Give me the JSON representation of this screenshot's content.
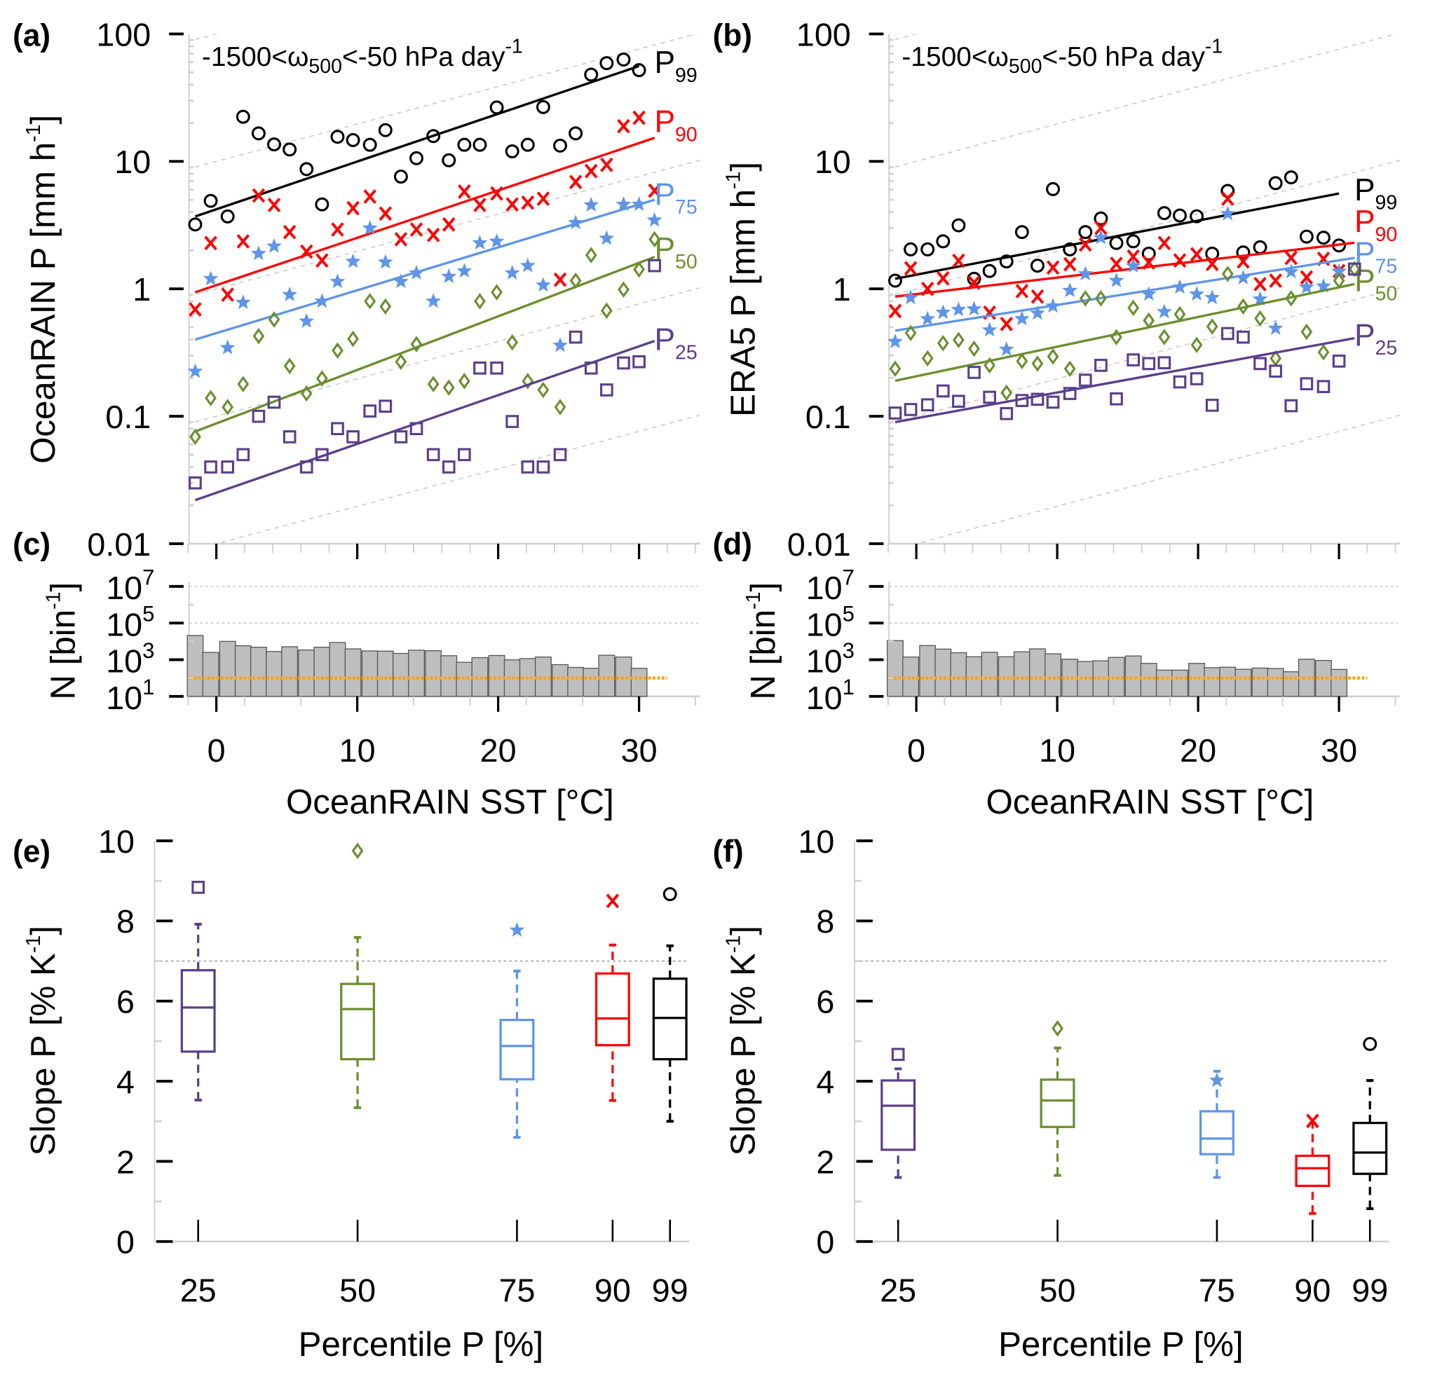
{
  "chart_data": [
    {
      "panel": "(a)",
      "type": "scatter",
      "annotation": {
        "pre": "-1500<ω",
        "sub": "500",
        "mid": "<-50 hPa day",
        "sup": "-1"
      },
      "ylabel": {
        "text": "OceanRAIN P [mm h",
        "sup": "-1",
        "end": "]"
      },
      "yscale": "log",
      "ylim": [
        0.01,
        100
      ],
      "yticks": [
        100,
        10,
        1,
        0.1,
        0.01
      ],
      "ytick_labels": [
        "100",
        "10",
        "1",
        "0.1",
        "0.01"
      ],
      "xlim": [
        -2,
        36
      ],
      "reference_lines": "7 % K-1 (dashed grey)",
      "x": [
        -1.5,
        -0.4,
        0.8,
        1.9,
        3.0,
        4.1,
        5.2,
        6.4,
        7.5,
        8.6,
        9.7,
        10.9,
        12.0,
        13.1,
        14.2,
        15.4,
        16.5,
        17.6,
        18.7,
        19.9,
        21.0,
        22.1,
        23.2,
        24.4,
        25.5,
        26.6,
        27.7,
        28.9,
        30.0,
        31.1
      ],
      "series": [
        {
          "name": {
            "main": "P",
            "sub": "99"
          },
          "marker": "circle",
          "color": "#000000",
          "values": [
            3.2,
            4.9,
            3.7,
            22.4,
            16.6,
            13.6,
            12.4,
            8.7,
            4.6,
            15.6,
            14.7,
            13.5,
            17.6,
            7.6,
            10.6,
            15.8,
            10.2,
            13.5,
            13.5,
            26.5,
            12.0,
            13.5,
            26.7,
            13.3,
            16.6,
            48,
            59,
            63,
            52,
            null
          ],
          "fit": {
            "x": [
              -1.5,
              30.0
            ],
            "y": [
              3.7,
              56
            ]
          }
        },
        {
          "name": {
            "main": "P",
            "sub": "90"
          },
          "marker": "cross",
          "color": "#ff0000",
          "values": [
            0.69,
            2.29,
            0.9,
            2.36,
            5.4,
            4.55,
            2.79,
            1.96,
            1.67,
            2.92,
            4.3,
            5.3,
            3.9,
            2.45,
            2.92,
            2.65,
            3.2,
            5.8,
            4.55,
            5.6,
            4.6,
            4.75,
            5.1,
            1.18,
            6.9,
            8.4,
            9.4,
            18.9,
            22.0,
            5.9
          ],
          "fit": {
            "x": [
              -1.5,
              31.1
            ],
            "y": [
              0.94,
              15.3
            ]
          }
        },
        {
          "name": {
            "main": "P",
            "sub": "75"
          },
          "marker": "star",
          "color": "#5e95e8",
          "values": [
            0.225,
            1.2,
            0.345,
            0.78,
            1.89,
            2.16,
            0.9,
            0.557,
            0.8,
            1.14,
            1.64,
            3.0,
            1.62,
            1.14,
            1.33,
            0.8,
            1.25,
            1.38,
            2.29,
            2.36,
            1.33,
            1.52,
            1.07,
            0.36,
            3.3,
            4.55,
            2.49,
            4.6,
            4.6,
            3.46
          ],
          "fit": {
            "x": [
              -1.5,
              31.1
            ],
            "y": [
              0.4,
              5.0
            ]
          }
        },
        {
          "name": {
            "main": "P",
            "sub": "50"
          },
          "marker": "diamond",
          "color": "#6b8e2f",
          "values": [
            0.069,
            0.139,
            0.118,
            0.179,
            0.426,
            0.575,
            0.248,
            0.151,
            0.198,
            0.328,
            0.405,
            0.8,
            0.727,
            0.268,
            0.368,
            0.179,
            0.168,
            0.189,
            0.8,
            0.94,
            0.38,
            0.189,
            0.161,
            0.118,
            1.16,
            1.84,
            0.674,
            0.987,
            1.42,
            2.45
          ],
          "fit": {
            "x": [
              -1.5,
              31.1
            ],
            "y": [
              0.076,
              1.78
            ]
          }
        },
        {
          "name": {
            "main": "P",
            "sub": "25"
          },
          "marker": "square",
          "color": "#5b3f8c",
          "values": [
            0.03,
            0.04,
            0.04,
            0.05,
            0.1,
            0.129,
            0.069,
            0.04,
            0.05,
            0.08,
            0.069,
            0.11,
            0.12,
            0.069,
            0.08,
            0.05,
            0.04,
            0.05,
            0.239,
            0.239,
            0.091,
            0.04,
            0.04,
            0.05,
            0.418,
            0.239,
            0.161,
            0.262,
            0.268,
            1.52
          ],
          "fit": {
            "x": [
              -1.5,
              31.1
            ],
            "y": [
              0.022,
              0.39
            ]
          }
        }
      ]
    },
    {
      "panel": "(b)",
      "type": "scatter",
      "annotation": {
        "pre": "-1500<ω",
        "sub": "500",
        "mid": "<-50 hPa day",
        "sup": "-1"
      },
      "ylabel": {
        "text": "ERA5 P [mm h",
        "sup": "-1",
        "end": "]"
      },
      "yscale": "log",
      "ylim": [
        0.01,
        100
      ],
      "yticks": [
        100,
        10,
        1,
        0.1,
        0.01
      ],
      "ytick_labels": [
        "100",
        "10",
        "1",
        "0.1",
        "0.01"
      ],
      "xlim": [
        -2,
        36
      ],
      "reference_lines": "7 % K-1 (dashed grey)",
      "x": [
        -1.5,
        -0.4,
        0.8,
        1.9,
        3.0,
        4.1,
        5.2,
        6.4,
        7.5,
        8.6,
        9.7,
        10.9,
        12.0,
        13.1,
        14.2,
        15.4,
        16.5,
        17.6,
        18.7,
        19.9,
        21.0,
        22.1,
        23.2,
        24.4,
        25.5,
        26.6,
        27.7,
        28.9,
        30.0,
        31.1
      ],
      "series": [
        {
          "name": {
            "main": "P",
            "sub": "99"
          },
          "marker": "circle",
          "color": "#000000",
          "values": [
            1.16,
            2.04,
            2.04,
            2.36,
            3.15,
            1.2,
            1.38,
            1.64,
            2.79,
            1.52,
            6.06,
            2.04,
            2.79,
            3.57,
            2.29,
            2.36,
            1.89,
            3.93,
            3.76,
            3.71,
            1.89,
            5.87,
            1.93,
            2.12,
            6.75,
            7.5,
            2.57,
            2.52,
            2.19,
            null
          ],
          "fit": {
            "x": [
              -1.5,
              30.0
            ],
            "y": [
              1.2,
              5.6
            ]
          }
        },
        {
          "name": {
            "main": "P",
            "sub": "90"
          },
          "marker": "cross",
          "color": "#ff0000",
          "values": [
            0.67,
            1.45,
            1.0,
            1.21,
            1.66,
            1.12,
            0.65,
            0.53,
            0.96,
            0.87,
            1.47,
            1.56,
            2.23,
            3.01,
            1.57,
            1.79,
            1.61,
            2.29,
            1.67,
            1.87,
            1.57,
            5.1,
            1.64,
            1.09,
            1.16,
            1.75,
            1.23,
            1.72,
            1.38,
            null
          ],
          "fit": {
            "x": [
              -1.5,
              31.1
            ],
            "y": [
              0.87,
              2.3
            ]
          }
        },
        {
          "name": {
            "main": "P",
            "sub": "75"
          },
          "marker": "star",
          "color": "#5e95e8",
          "values": [
            0.385,
            0.853,
            0.582,
            0.653,
            0.687,
            0.695,
            0.475,
            0.335,
            0.582,
            0.644,
            0.732,
            0.97,
            1.31,
            2.52,
            1.16,
            1.51,
            0.909,
            0.661,
            1.03,
            0.909,
            0.853,
            3.88,
            1.22,
            0.831,
            0.49,
            1.36,
            1.03,
            1.05,
            1.37,
            null
          ],
          "fit": {
            "x": [
              -1.5,
              31.1
            ],
            "y": [
              0.47,
              1.75
            ]
          }
        },
        {
          "name": {
            "main": "P",
            "sub": "50"
          },
          "marker": "diamond",
          "color": "#6b8e2f",
          "values": [
            0.236,
            0.45,
            0.285,
            0.375,
            0.397,
            0.339,
            0.251,
            0.153,
            0.271,
            0.259,
            0.294,
            0.236,
            0.842,
            0.842,
            0.418,
            0.709,
            0.564,
            0.418,
            0.632,
            0.363,
            0.506,
            1.31,
            0.727,
            0.586,
            0.285,
            0.842,
            0.46,
            0.318,
            1.16,
            1.43
          ],
          "fit": {
            "x": [
              -1.5,
              31.1
            ],
            "y": [
              0.19,
              1.09
            ]
          }
        },
        {
          "name": {
            "main": "P",
            "sub": "25"
          },
          "marker": "square",
          "color": "#5b3f8c",
          "values": [
            0.106,
            0.113,
            0.123,
            0.158,
            0.131,
            0.221,
            0.141,
            0.105,
            0.133,
            0.136,
            0.129,
            0.151,
            0.192,
            0.251,
            0.137,
            0.277,
            0.259,
            0.263,
            0.186,
            0.197,
            0.122,
            0.446,
            0.418,
            0.259,
            0.226,
            0.121,
            0.18,
            0.171,
            0.271,
            1.43
          ],
          "fit": {
            "x": [
              -1.5,
              31.1
            ],
            "y": [
              0.09,
              0.41
            ]
          }
        }
      ]
    },
    {
      "panel": "(c)",
      "type": "bar",
      "yscale": "log",
      "ylabel": {
        "text": "N [bin",
        "sup": "-1",
        "end": "]"
      },
      "xlabel": "OceanRAIN SST [°C]",
      "xticks": [
        0,
        10,
        20,
        30
      ],
      "xtick_labels": [
        "0",
        "10",
        "20",
        "30"
      ],
      "yticks": [
        10,
        1000,
        100000,
        10000000
      ],
      "ytick_labels": [
        {
          "base": "10",
          "exp": "1"
        },
        {
          "base": "10",
          "exp": "3"
        },
        {
          "base": "10",
          "exp": "5"
        },
        {
          "base": "10",
          "exp": "7"
        }
      ],
      "ylim": [
        10,
        10000000
      ],
      "x": [
        -1.5,
        -0.4,
        0.8,
        1.9,
        3.0,
        4.1,
        5.2,
        6.4,
        7.5,
        8.6,
        9.7,
        10.9,
        12.0,
        13.1,
        14.2,
        15.4,
        16.5,
        17.6,
        18.7,
        19.9,
        21.0,
        22.1,
        23.2,
        24.4,
        25.5,
        26.6,
        27.7,
        28.9,
        30.0
      ],
      "values": [
        21000,
        2500,
        10000,
        5800,
        4800,
        2800,
        5100,
        3400,
        4800,
        8700,
        3900,
        3000,
        2950,
        2200,
        3300,
        3100,
        1650,
        720,
        1300,
        1700,
        980,
        1150,
        1400,
        540,
        380,
        340,
        1750,
        1400,
        340
      ],
      "bar_color": "#bebebe",
      "threshold": {
        "value": 100,
        "color": "#ffa500"
      }
    },
    {
      "panel": "(d)",
      "type": "bar",
      "yscale": "log",
      "ylabel": {
        "text": "N [bin",
        "sup": "-1",
        "end": "]"
      },
      "xlabel": "OceanRAIN SST [°C]",
      "xticks": [
        0,
        10,
        20,
        30
      ],
      "xtick_labels": [
        "0",
        "10",
        "20",
        "30"
      ],
      "yticks": [
        10,
        1000,
        100000,
        10000000
      ],
      "ytick_labels": [
        {
          "base": "10",
          "exp": "1"
        },
        {
          "base": "10",
          "exp": "3"
        },
        {
          "base": "10",
          "exp": "5"
        },
        {
          "base": "10",
          "exp": "7"
        }
      ],
      "ylim": [
        10,
        10000000
      ],
      "x": [
        -1.5,
        -0.4,
        0.8,
        1.9,
        3.0,
        4.1,
        5.2,
        6.4,
        7.5,
        8.6,
        9.7,
        10.9,
        12.0,
        13.1,
        14.2,
        15.4,
        16.5,
        17.6,
        18.7,
        19.9,
        21.0,
        22.1,
        23.2,
        24.4,
        25.5,
        26.6,
        27.7,
        28.9,
        30.0
      ],
      "values": [
        11000,
        1400,
        5900,
        3800,
        2400,
        1450,
        2550,
        1450,
        2700,
        3900,
        2100,
        1070,
        800,
        870,
        1340,
        1600,
        630,
        270,
        270,
        630,
        370,
        390,
        300,
        350,
        330,
        220,
        1070,
        910,
        295
      ],
      "bar_color": "#bebebe",
      "threshold": {
        "value": 100,
        "color": "#ffa500"
      }
    },
    {
      "panel": "(e)",
      "type": "box",
      "ylabel": {
        "text": "Slope P [% K",
        "sup": "-1",
        "end": "]"
      },
      "xlabel": "Percentile P [%]",
      "ylim": [
        0,
        10
      ],
      "yticks": [
        0,
        2,
        4,
        6,
        8,
        10
      ],
      "ytick_labels": [
        "0",
        "2",
        "4",
        "6",
        "8",
        "10"
      ],
      "reference_value": 7,
      "boxes": [
        {
          "label": "25",
          "percentile": 25,
          "color": "#5b3f8c",
          "marker": "square",
          "low": 3.53,
          "q1": 4.74,
          "median": 5.84,
          "q3": 6.77,
          "high": 7.92,
          "outlier": 8.84
        },
        {
          "label": "50",
          "percentile": 50,
          "color": "#6b8e2f",
          "marker": "diamond",
          "low": 3.34,
          "q1": 4.55,
          "median": 5.8,
          "q3": 6.43,
          "high": 7.59,
          "outlier": 9.75
        },
        {
          "label": "75",
          "percentile": 75,
          "color": "#5e95e8",
          "marker": "star",
          "low": 2.6,
          "q1": 4.05,
          "median": 4.88,
          "q3": 5.53,
          "high": 6.75,
          "outlier": 7.77
        },
        {
          "label": "90",
          "percentile": 90,
          "color": "#ff0000",
          "marker": "cross",
          "low": 3.52,
          "q1": 4.9,
          "median": 5.57,
          "q3": 6.69,
          "high": 7.4,
          "outlier": 8.5
        },
        {
          "label": "99",
          "percentile": 99,
          "color": "#000000",
          "marker": "circle",
          "low": 3.0,
          "q1": 4.55,
          "median": 5.58,
          "q3": 6.56,
          "high": 7.38,
          "outlier": 8.67
        }
      ]
    },
    {
      "panel": "(f)",
      "type": "box",
      "ylabel": {
        "text": "Slope P [% K",
        "sup": "-1",
        "end": "]"
      },
      "xlabel": "Percentile P [%]",
      "ylim": [
        0,
        10
      ],
      "yticks": [
        0,
        2,
        4,
        6,
        8,
        10
      ],
      "ytick_labels": [
        "0",
        "2",
        "4",
        "6",
        "8",
        "10"
      ],
      "reference_value": 7,
      "boxes": [
        {
          "label": "25",
          "percentile": 25,
          "color": "#5b3f8c",
          "marker": "square",
          "low": 1.6,
          "q1": 2.29,
          "median": 3.39,
          "q3": 4.02,
          "high": 4.31,
          "outlier": 4.67
        },
        {
          "label": "50",
          "percentile": 50,
          "color": "#6b8e2f",
          "marker": "diamond",
          "low": 1.65,
          "q1": 2.86,
          "median": 3.52,
          "q3": 4.04,
          "high": 4.83,
          "outlier": 5.32
        },
        {
          "label": "75",
          "percentile": 75,
          "color": "#5e95e8",
          "marker": "star",
          "low": 1.6,
          "q1": 2.18,
          "median": 2.57,
          "q3": 3.25,
          "high": 4.25,
          "outlier": 4.02
        },
        {
          "label": "90",
          "percentile": 90,
          "color": "#ff0000",
          "marker": "cross",
          "low": 0.7,
          "q1": 1.39,
          "median": 1.83,
          "q3": 2.14,
          "high": 2.95,
          "outlier": 3.01
        },
        {
          "label": "99",
          "percentile": 99,
          "color": "#000000",
          "marker": "circle",
          "low": 0.82,
          "q1": 1.69,
          "median": 2.22,
          "q3": 2.96,
          "high": 4.02,
          "outlier": 4.93
        }
      ]
    }
  ]
}
